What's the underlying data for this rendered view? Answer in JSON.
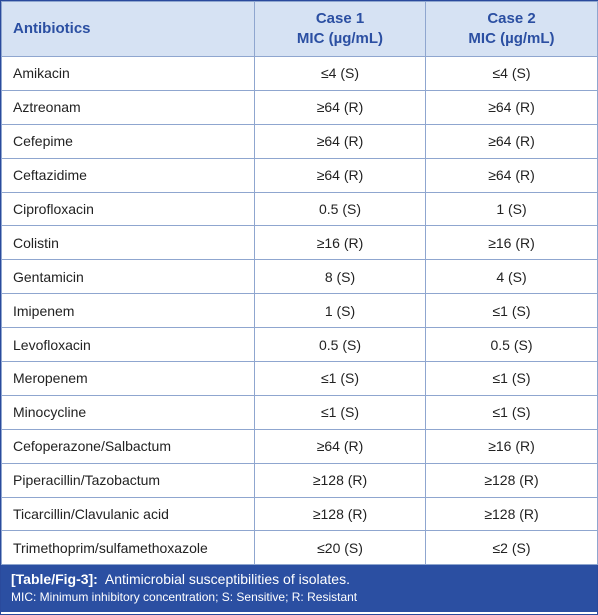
{
  "table": {
    "headers": {
      "col1": "Antibiotics",
      "col2_line1": "Case 1",
      "col2_line2": "MIC (µg/mL)",
      "col3_line1": "Case 2",
      "col3_line2": "MIC (µg/mL)"
    },
    "rows": [
      {
        "antibiotic": "Amikacin",
        "case1": "≤4 (S)",
        "case2": "≤4 (S)"
      },
      {
        "antibiotic": "Aztreonam",
        "case1": "≥64 (R)",
        "case2": "≥64 (R)"
      },
      {
        "antibiotic": "Cefepime",
        "case1": "≥64 (R)",
        "case2": "≥64 (R)"
      },
      {
        "antibiotic": "Ceftazidime",
        "case1": "≥64 (R)",
        "case2": "≥64 (R)"
      },
      {
        "antibiotic": "Ciprofloxacin",
        "case1": "0.5 (S)",
        "case2": "1 (S)"
      },
      {
        "antibiotic": "Colistin",
        "case1": "≥16 (R)",
        "case2": "≥16 (R)"
      },
      {
        "antibiotic": "Gentamicin",
        "case1": "8 (S)",
        "case2": "4 (S)"
      },
      {
        "antibiotic": "Imipenem",
        "case1": "1 (S)",
        "case2": "≤1 (S)"
      },
      {
        "antibiotic": "Levofloxacin",
        "case1": "0.5 (S)",
        "case2": "0.5 (S)"
      },
      {
        "antibiotic": "Meropenem",
        "case1": "≤1 (S)",
        "case2": "≤1 (S)"
      },
      {
        "antibiotic": "Minocycline",
        "case1": "≤1 (S)",
        "case2": "≤1 (S)"
      },
      {
        "antibiotic": "Cefoperazone/Salbactum",
        "case1": "≥64 (R)",
        "case2": "≥16 (R)"
      },
      {
        "antibiotic": "Piperacillin/Tazobactum",
        "case1": "≥128 (R)",
        "case2": "≥128 (R)"
      },
      {
        "antibiotic": "Ticarcillin/Clavulanic acid",
        "case1": "≥128 (R)",
        "case2": "≥128 (R)"
      },
      {
        "antibiotic": "Trimethoprim/sulfamethoxazole",
        "case1": "≤20 (S)",
        "case2": "≤2 (S)"
      }
    ]
  },
  "caption": {
    "label": "[Table/Fig-3]:",
    "title": "Antimicrobial susceptibilities of isolates.",
    "note": "MIC: Minimum inhibitory concentration; S: Sensitive; R: Resistant"
  },
  "colors": {
    "header_bg": "#d6e2f3",
    "header_text": "#2b4fa2",
    "caption_bg": "#2b4fa2",
    "border": "#8fa6cf"
  }
}
